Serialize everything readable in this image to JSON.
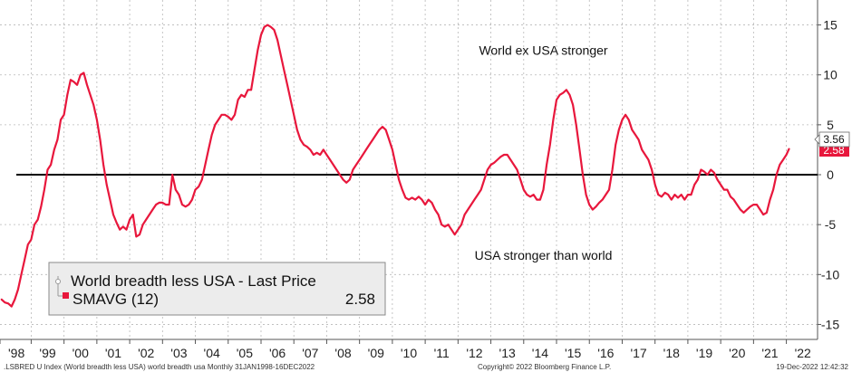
{
  "chart_data": {
    "type": "line",
    "title": "",
    "xlabel": "",
    "ylabel": "",
    "ylim": [
      -16.5,
      17.5
    ],
    "yticks": [
      15,
      10,
      5,
      0,
      -5,
      -10,
      -15
    ],
    "xticks": [
      {
        "label": "'98",
        "x": 1998.45
      },
      {
        "label": "'99",
        "x": 1999.4
      },
      {
        "label": "'00",
        "x": 2000.4
      },
      {
        "label": "'01",
        "x": 2001.4
      },
      {
        "label": "'02",
        "x": 2002.4
      },
      {
        "label": "'03",
        "x": 2003.4
      },
      {
        "label": "'04",
        "x": 2004.4
      },
      {
        "label": "'05",
        "x": 2005.4
      },
      {
        "label": "'06",
        "x": 2006.4
      },
      {
        "label": "'07",
        "x": 2007.4
      },
      {
        "label": "'08",
        "x": 2008.4
      },
      {
        "label": "'09",
        "x": 2009.4
      },
      {
        "label": "'10",
        "x": 2010.4
      },
      {
        "label": "'11",
        "x": 2011.4
      },
      {
        "label": "'12",
        "x": 2012.4
      },
      {
        "label": "'13",
        "x": 2013.4
      },
      {
        "label": "'14",
        "x": 2014.4
      },
      {
        "label": "'15",
        "x": 2015.4
      },
      {
        "label": "'16",
        "x": 2016.4
      },
      {
        "label": "'17",
        "x": 2017.4
      },
      {
        "label": "'18",
        "x": 2018.4
      },
      {
        "label": "'19",
        "x": 2019.4
      },
      {
        "label": "'20",
        "x": 2020.4
      },
      {
        "label": "'21",
        "x": 2021.4
      },
      {
        "label": "'22",
        "x": 2022.4
      }
    ],
    "reference_line": 0,
    "grid": "horizontal-dashed",
    "annotations": [
      {
        "text": "World ex USA stronger",
        "x": 2014.5,
        "y": 12
      },
      {
        "text": "USA stronger than world",
        "x": 2014.5,
        "y": -8.5
      }
    ],
    "series": [
      {
        "name": "SMAVG (12)",
        "color": "#e8173c",
        "last_value": "2.58",
        "points": [
          [
            1998.0,
            -12.5
          ],
          [
            1998.1,
            -12.8
          ],
          [
            1998.2,
            -12.9
          ],
          [
            1998.3,
            -13.2
          ],
          [
            1998.4,
            -12.5
          ],
          [
            1998.5,
            -11.5
          ],
          [
            1998.6,
            -10.0
          ],
          [
            1998.7,
            -8.5
          ],
          [
            1998.8,
            -7.0
          ],
          [
            1998.9,
            -6.5
          ],
          [
            1999.0,
            -5.0
          ],
          [
            1999.1,
            -4.5
          ],
          [
            1999.2,
            -3.2
          ],
          [
            1999.3,
            -1.5
          ],
          [
            1999.4,
            0.5
          ],
          [
            1999.5,
            1.0
          ],
          [
            1999.6,
            2.5
          ],
          [
            1999.7,
            3.5
          ],
          [
            1999.8,
            5.5
          ],
          [
            1999.9,
            6.0
          ],
          [
            2000.0,
            8.0
          ],
          [
            2000.1,
            9.5
          ],
          [
            2000.2,
            9.3
          ],
          [
            2000.3,
            9.0
          ],
          [
            2000.4,
            10.0
          ],
          [
            2000.5,
            10.2
          ],
          [
            2000.6,
            9.0
          ],
          [
            2000.7,
            8.0
          ],
          [
            2000.8,
            7.0
          ],
          [
            2000.9,
            5.5
          ],
          [
            2001.0,
            3.5
          ],
          [
            2001.1,
            1.0
          ],
          [
            2001.2,
            -1.0
          ],
          [
            2001.3,
            -2.5
          ],
          [
            2001.4,
            -4.0
          ],
          [
            2001.5,
            -4.8
          ],
          [
            2001.6,
            -5.5
          ],
          [
            2001.7,
            -5.2
          ],
          [
            2001.8,
            -5.5
          ],
          [
            2001.9,
            -4.5
          ],
          [
            2002.0,
            -4.0
          ],
          [
            2002.1,
            -6.2
          ],
          [
            2002.2,
            -6.0
          ],
          [
            2002.3,
            -5.0
          ],
          [
            2002.4,
            -4.5
          ],
          [
            2002.5,
            -4.0
          ],
          [
            2002.6,
            -3.5
          ],
          [
            2002.7,
            -3.0
          ],
          [
            2002.8,
            -2.8
          ],
          [
            2002.9,
            -2.8
          ],
          [
            2003.0,
            -3.0
          ],
          [
            2003.1,
            -3.0
          ],
          [
            2003.15,
            -1.5
          ],
          [
            2003.2,
            0.0
          ],
          [
            2003.3,
            -1.5
          ],
          [
            2003.4,
            -2.0
          ],
          [
            2003.5,
            -3.0
          ],
          [
            2003.6,
            -3.2
          ],
          [
            2003.7,
            -3.0
          ],
          [
            2003.8,
            -2.5
          ],
          [
            2003.9,
            -1.5
          ],
          [
            2004.0,
            -1.2
          ],
          [
            2004.1,
            -0.5
          ],
          [
            2004.2,
            1.0
          ],
          [
            2004.3,
            2.5
          ],
          [
            2004.4,
            4.0
          ],
          [
            2004.5,
            5.0
          ],
          [
            2004.6,
            5.5
          ],
          [
            2004.7,
            6.0
          ],
          [
            2004.8,
            6.0
          ],
          [
            2004.9,
            5.8
          ],
          [
            2005.0,
            5.5
          ],
          [
            2005.1,
            6.0
          ],
          [
            2005.2,
            7.5
          ],
          [
            2005.3,
            8.0
          ],
          [
            2005.4,
            7.8
          ],
          [
            2005.5,
            8.5
          ],
          [
            2005.6,
            8.5
          ],
          [
            2005.7,
            10.5
          ],
          [
            2005.8,
            12.5
          ],
          [
            2005.9,
            14.0
          ],
          [
            2006.0,
            14.8
          ],
          [
            2006.1,
            15.0
          ],
          [
            2006.2,
            14.8
          ],
          [
            2006.3,
            14.5
          ],
          [
            2006.4,
            13.5
          ],
          [
            2006.5,
            12.0
          ],
          [
            2006.6,
            10.5
          ],
          [
            2006.7,
            9.0
          ],
          [
            2006.8,
            7.5
          ],
          [
            2006.9,
            6.0
          ],
          [
            2007.0,
            4.5
          ],
          [
            2007.1,
            3.5
          ],
          [
            2007.2,
            3.0
          ],
          [
            2007.3,
            2.8
          ],
          [
            2007.4,
            2.5
          ],
          [
            2007.5,
            2.0
          ],
          [
            2007.6,
            2.2
          ],
          [
            2007.7,
            2.0
          ],
          [
            2007.8,
            2.5
          ],
          [
            2007.9,
            2.0
          ],
          [
            2008.0,
            1.5
          ],
          [
            2008.1,
            1.0
          ],
          [
            2008.2,
            0.5
          ],
          [
            2008.3,
            0.0
          ],
          [
            2008.4,
            -0.5
          ],
          [
            2008.5,
            -0.8
          ],
          [
            2008.6,
            -0.5
          ],
          [
            2008.7,
            0.5
          ],
          [
            2008.8,
            1.0
          ],
          [
            2008.9,
            1.5
          ],
          [
            2009.0,
            2.0
          ],
          [
            2009.1,
            2.5
          ],
          [
            2009.2,
            3.0
          ],
          [
            2009.3,
            3.5
          ],
          [
            2009.4,
            4.0
          ],
          [
            2009.5,
            4.5
          ],
          [
            2009.6,
            4.8
          ],
          [
            2009.7,
            4.5
          ],
          [
            2009.8,
            3.5
          ],
          [
            2009.9,
            2.5
          ],
          [
            2010.0,
            1.0
          ],
          [
            2010.1,
            -0.5
          ],
          [
            2010.2,
            -1.5
          ],
          [
            2010.3,
            -2.3
          ],
          [
            2010.4,
            -2.5
          ],
          [
            2010.5,
            -2.3
          ],
          [
            2010.6,
            -2.5
          ],
          [
            2010.7,
            -2.2
          ],
          [
            2010.8,
            -2.5
          ],
          [
            2010.9,
            -3.0
          ],
          [
            2011.0,
            -2.5
          ],
          [
            2011.1,
            -2.8
          ],
          [
            2011.2,
            -3.5
          ],
          [
            2011.3,
            -4.0
          ],
          [
            2011.4,
            -5.0
          ],
          [
            2011.5,
            -5.2
          ],
          [
            2011.6,
            -5.0
          ],
          [
            2011.7,
            -5.5
          ],
          [
            2011.8,
            -6.0
          ],
          [
            2011.9,
            -5.5
          ],
          [
            2012.0,
            -5.0
          ],
          [
            2012.1,
            -4.0
          ],
          [
            2012.2,
            -3.5
          ],
          [
            2012.3,
            -3.0
          ],
          [
            2012.4,
            -2.5
          ],
          [
            2012.5,
            -2.0
          ],
          [
            2012.6,
            -1.5
          ],
          [
            2012.7,
            -0.5
          ],
          [
            2012.8,
            0.5
          ],
          [
            2012.9,
            1.0
          ],
          [
            2013.0,
            1.2
          ],
          [
            2013.1,
            1.5
          ],
          [
            2013.2,
            1.8
          ],
          [
            2013.3,
            2.0
          ],
          [
            2013.4,
            2.0
          ],
          [
            2013.5,
            1.5
          ],
          [
            2013.6,
            1.0
          ],
          [
            2013.7,
            0.5
          ],
          [
            2013.8,
            -0.5
          ],
          [
            2013.9,
            -1.5
          ],
          [
            2014.0,
            -2.0
          ],
          [
            2014.1,
            -2.2
          ],
          [
            2014.2,
            -2.0
          ],
          [
            2014.3,
            -2.5
          ],
          [
            2014.4,
            -2.5
          ],
          [
            2014.5,
            -1.5
          ],
          [
            2014.6,
            1.0
          ],
          [
            2014.7,
            3.0
          ],
          [
            2014.8,
            5.5
          ],
          [
            2014.9,
            7.5
          ],
          [
            2015.0,
            8.0
          ],
          [
            2015.1,
            8.2
          ],
          [
            2015.2,
            8.5
          ],
          [
            2015.3,
            8.0
          ],
          [
            2015.4,
            7.0
          ],
          [
            2015.5,
            5.0
          ],
          [
            2015.6,
            2.5
          ],
          [
            2015.7,
            0.0
          ],
          [
            2015.8,
            -2.0
          ],
          [
            2015.9,
            -3.0
          ],
          [
            2016.0,
            -3.5
          ],
          [
            2016.1,
            -3.2
          ],
          [
            2016.2,
            -2.8
          ],
          [
            2016.3,
            -2.5
          ],
          [
            2016.4,
            -2.0
          ],
          [
            2016.5,
            -1.5
          ],
          [
            2016.6,
            0.5
          ],
          [
            2016.7,
            3.0
          ],
          [
            2016.8,
            4.5
          ],
          [
            2016.9,
            5.5
          ],
          [
            2017.0,
            6.0
          ],
          [
            2017.1,
            5.5
          ],
          [
            2017.2,
            4.5
          ],
          [
            2017.3,
            4.0
          ],
          [
            2017.4,
            3.5
          ],
          [
            2017.5,
            2.5
          ],
          [
            2017.6,
            2.0
          ],
          [
            2017.7,
            1.5
          ],
          [
            2017.8,
            0.5
          ],
          [
            2017.9,
            -1.0
          ],
          [
            2018.0,
            -2.0
          ],
          [
            2018.1,
            -2.2
          ],
          [
            2018.2,
            -1.8
          ],
          [
            2018.3,
            -2.0
          ],
          [
            2018.4,
            -2.5
          ],
          [
            2018.5,
            -2.0
          ],
          [
            2018.6,
            -2.3
          ],
          [
            2018.7,
            -2.0
          ],
          [
            2018.8,
            -2.5
          ],
          [
            2018.9,
            -2.0
          ],
          [
            2019.0,
            -2.0
          ],
          [
            2019.1,
            -1.0
          ],
          [
            2019.2,
            -0.5
          ],
          [
            2019.3,
            0.5
          ],
          [
            2019.4,
            0.3
          ],
          [
            2019.5,
            0.0
          ],
          [
            2019.6,
            0.5
          ],
          [
            2019.7,
            0.2
          ],
          [
            2019.8,
            -0.5
          ],
          [
            2019.9,
            -1.0
          ],
          [
            2020.0,
            -1.5
          ],
          [
            2020.1,
            -1.5
          ],
          [
            2020.2,
            -2.2
          ],
          [
            2020.3,
            -2.5
          ],
          [
            2020.4,
            -3.0
          ],
          [
            2020.5,
            -3.5
          ],
          [
            2020.6,
            -3.8
          ],
          [
            2020.7,
            -3.5
          ],
          [
            2020.8,
            -3.2
          ],
          [
            2020.9,
            -3.0
          ],
          [
            2021.0,
            -3.0
          ],
          [
            2021.1,
            -3.5
          ],
          [
            2021.2,
            -4.0
          ],
          [
            2021.3,
            -3.8
          ],
          [
            2021.4,
            -2.5
          ],
          [
            2021.5,
            -1.5
          ],
          [
            2021.6,
            0.0
          ],
          [
            2021.7,
            1.0
          ],
          [
            2021.8,
            1.5
          ],
          [
            2021.9,
            2.0
          ],
          [
            2021.98,
            2.58
          ]
        ]
      }
    ],
    "last_price_labels": [
      {
        "series": "World breadth less USA - Last Price",
        "value": "3.56"
      },
      {
        "series": "SMAVG (12)",
        "value": "2.58"
      }
    ],
    "legend": {
      "placement": "bottom-left",
      "items": [
        {
          "label": "World breadth less USA - Last Price",
          "value": ""
        },
        {
          "label": "SMAVG (12)",
          "value": "2.58"
        }
      ]
    }
  },
  "footer": {
    "left": ".LSBRED U Index (World breadth less USA) world breadth usa  Monthly 31JAN1998-16DEC2022",
    "center": "Copyright© 2022 Bloomberg Finance L.P.",
    "right": "19-Dec-2022  12:42:32"
  },
  "colors": {
    "series_red": "#e8173c",
    "zero_line": "#000000",
    "grid": "#b8b8b8",
    "legend_bg": "#ececec"
  }
}
